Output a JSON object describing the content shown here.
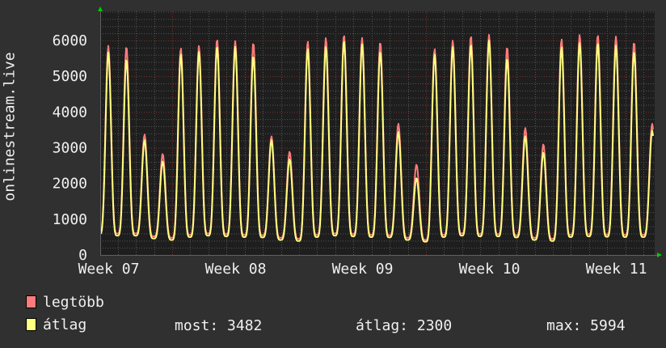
{
  "chart_data": {
    "type": "line",
    "ylabel": "onlinestream.live",
    "ylim": [
      0,
      6800
    ],
    "y_ticks": [
      "0",
      "1000",
      "2000",
      "3000",
      "4000",
      "5000",
      "6000"
    ],
    "x_ticks": [
      "Week 07",
      "Week 08",
      "Week 09",
      "Week 10",
      "Week 11"
    ],
    "grid": true,
    "legend_placement": "bottom",
    "series": [
      {
        "name": "legtöbb",
        "color": "#ff7b7b",
        "daily_peaks": [
          5850,
          5830,
          3370,
          2830,
          5790,
          5850,
          6040,
          5980,
          5940,
          3320,
          2890,
          5980,
          6070,
          6160,
          6070,
          5960,
          3670,
          2530,
          5770,
          6000,
          6130,
          6160,
          5820,
          3550,
          3100,
          6040,
          6160,
          6160,
          6110,
          5960,
          3670
        ],
        "daily_troughs": [
          620,
          600,
          600,
          520,
          480,
          560,
          600,
          580,
          560,
          550,
          480,
          450,
          560,
          600,
          580,
          560,
          550,
          480,
          420,
          560,
          600,
          580,
          580,
          550,
          480,
          450,
          560,
          580,
          570,
          560,
          560
        ]
      },
      {
        "name": "átlag",
        "color": "#ffff80",
        "daily_peaks": [
          5660,
          5480,
          3210,
          2620,
          5620,
          5680,
          5840,
          5820,
          5570,
          3210,
          2680,
          5770,
          5820,
          6000,
          5890,
          5700,
          3440,
          2150,
          5620,
          5820,
          5890,
          6000,
          5500,
          3320,
          2870,
          5820,
          5930,
          5930,
          5850,
          5700,
          3482
        ],
        "daily_troughs": [
          560,
          540,
          540,
          460,
          420,
          500,
          540,
          520,
          500,
          490,
          420,
          390,
          500,
          540,
          520,
          500,
          490,
          420,
          370,
          500,
          540,
          520,
          520,
          490,
          420,
          390,
          500,
          520,
          510,
          500,
          500
        ]
      }
    ]
  },
  "legend": {
    "items": [
      {
        "label": "legtöbb",
        "color": "#ff7b7b"
      },
      {
        "label": "átlag",
        "color": "#ffff80"
      }
    ],
    "stats": {
      "most": "most: 3482",
      "atlag": "átlag: 2300",
      "max": "max: 5994"
    }
  },
  "colors": {
    "background": "#303030",
    "plot": "#1e1e1e",
    "grid_minor": "#555555",
    "grid_major": "#7a3030",
    "arrow": "#00cc00"
  }
}
